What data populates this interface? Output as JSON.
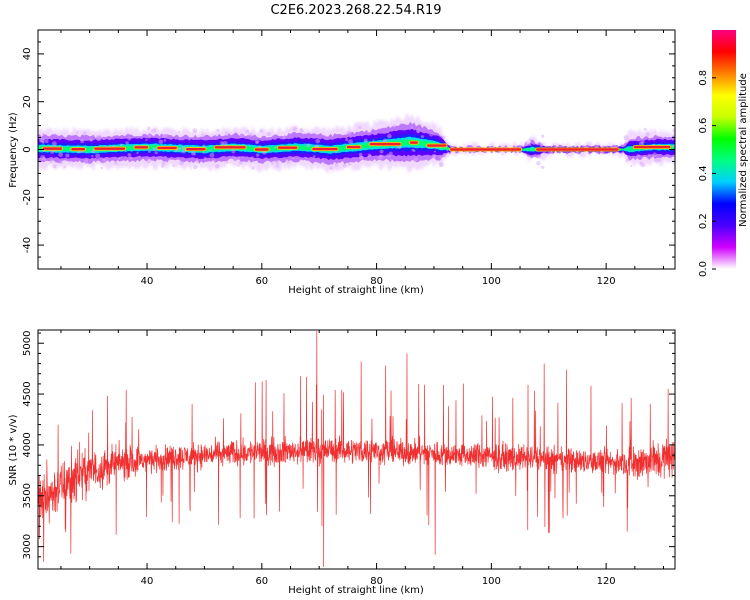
{
  "title": "C2E6.2023.268.22.54.R19",
  "chart_data": [
    {
      "type": "heatmap",
      "xlabel": "Height of straight line (km)",
      "ylabel": "Frequency (Hz)",
      "xlim": [
        21,
        132
      ],
      "ylim": [
        -50,
        50
      ],
      "x_ticks": [
        40,
        60,
        80,
        100,
        120
      ],
      "y_ticks": [
        40,
        20,
        0,
        -20,
        -40
      ],
      "y_tick_labels": [
        "40",
        "20",
        "0",
        "-20",
        "-40"
      ],
      "colorbar": {
        "label": "Normalized spectral amplitude",
        "range": [
          0,
          1
        ],
        "ticks": [
          0.0,
          0.2,
          0.4,
          0.6,
          0.8
        ],
        "tick_labels": [
          "0.0",
          "0.2",
          "0.4",
          "0.6",
          "0.8"
        ],
        "colors": [
          "#ffffff",
          "#d000ff",
          "#4b00ff",
          "#0000ff",
          "#00d0ff",
          "#00ff80",
          "#00ff00",
          "#c8ff00",
          "#ffff00",
          "#ff8000",
          "#ff0000",
          "#ff0080"
        ]
      },
      "band_center": [
        [
          21,
          0.5
        ],
        [
          30,
          0
        ],
        [
          40,
          1
        ],
        [
          50,
          0
        ],
        [
          55,
          1
        ],
        [
          60,
          0
        ],
        [
          66,
          1
        ],
        [
          72,
          0
        ],
        [
          80,
          2
        ],
        [
          86,
          3
        ],
        [
          90,
          2
        ],
        [
          93,
          0
        ],
        [
          106,
          0
        ],
        [
          110,
          0
        ],
        [
          123,
          0
        ],
        [
          128,
          1
        ],
        [
          132,
          1
        ]
      ],
      "band_halfwidth": [
        [
          21,
          3
        ],
        [
          40,
          3
        ],
        [
          60,
          3
        ],
        [
          80,
          3.5
        ],
        [
          86,
          4.5
        ],
        [
          91,
          3
        ],
        [
          93,
          0.6
        ],
        [
          105,
          0.6
        ],
        [
          107,
          2
        ],
        [
          110,
          0.8
        ],
        [
          123,
          0.8
        ],
        [
          124,
          2.5
        ],
        [
          132,
          2.5
        ]
      ],
      "grid": false,
      "legend": "none"
    },
    {
      "type": "line",
      "xlabel": "Height of straight line (km)",
      "ylabel": "SNR (10 * v/v)",
      "xlim": [
        21,
        132
      ],
      "ylim": [
        2780,
        5130
      ],
      "x_ticks": [
        40,
        60,
        80,
        100,
        120
      ],
      "y_ticks": [
        3000,
        3500,
        4000,
        4500,
        5000
      ],
      "y_tick_labels": [
        "3000",
        "3500",
        "4000",
        "4500",
        "5000"
      ],
      "series_color": "#f03030",
      "envelope": [
        [
          21,
          3400
        ],
        [
          24,
          3550
        ],
        [
          28,
          3700
        ],
        [
          35,
          3820
        ],
        [
          45,
          3880
        ],
        [
          55,
          3920
        ],
        [
          65,
          3940
        ],
        [
          75,
          3950
        ],
        [
          85,
          3930
        ],
        [
          95,
          3900
        ],
        [
          105,
          3870
        ],
        [
          115,
          3840
        ],
        [
          125,
          3820
        ],
        [
          132,
          3880
        ]
      ],
      "spikes": [
        [
          22.0,
          2850
        ],
        [
          24.5,
          4200
        ],
        [
          26.7,
          2930
        ],
        [
          69.6,
          5120
        ],
        [
          70.8,
          2800
        ],
        [
          77.3,
          4820
        ],
        [
          81.6,
          4780
        ],
        [
          85.3,
          4900
        ],
        [
          90.2,
          2920
        ],
        [
          109.2,
          4800
        ],
        [
          113.1,
          4740
        ],
        [
          130.8,
          4550
        ]
      ],
      "grid": false,
      "legend": "none"
    }
  ]
}
